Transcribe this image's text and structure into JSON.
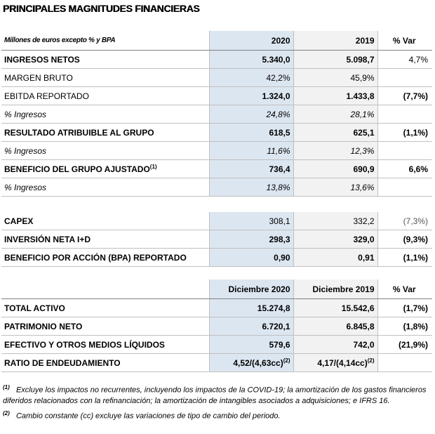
{
  "title": "PRINCIPALES MAGNITUDES FINANCIERAS",
  "tables": [
    {
      "header": [
        "Millones de euros excepto % y BPA",
        "2020",
        "2019",
        "% Var"
      ],
      "rows": [
        {
          "label": "INGRESOS NETOS",
          "cells": [
            "5.340,0",
            "5.098,7",
            "4,7%"
          ]
        },
        {
          "label": "MARGEN BRUTO",
          "cells": [
            "42,2%",
            "45,9%"
          ]
        },
        {
          "label": "EBITDA REPORTADO",
          "cells": [
            "1.324,0",
            "1.433,8",
            "(7,7%)"
          ]
        },
        {
          "label": "% Ingresos",
          "cells": [
            "24,8%",
            "28,1%"
          ]
        },
        {
          "label": "RESULTADO ATRIBUIBLE AL GRUPO",
          "cells": [
            "618,5",
            "625,1",
            "(1,1%)"
          ]
        },
        {
          "label": "% Ingresos",
          "cells": [
            "11,6%",
            "12,3%"
          ]
        },
        {
          "label": "BENEFICIO DEL GRUPO AJUSTADO",
          "note": "(1)",
          "cells": [
            "736,4",
            "690,9",
            "6,6%"
          ]
        },
        {
          "label": "% Ingresos",
          "cells": [
            "13,8%",
            "13,6%"
          ]
        }
      ]
    },
    {
      "rows": [
        {
          "label": "CAPEX",
          "cells": [
            "308,1",
            "332,2",
            "(7,3%)"
          ]
        },
        {
          "label": "INVERSIÓN NETA I+D",
          "cells": [
            "298,3",
            "329,0",
            "(9,3%)"
          ]
        },
        {
          "label": "BENEFICIO POR ACCIÓN (BPA) REPORTADO",
          "cells": [
            "0,90",
            "0,91",
            "(1,1%)"
          ]
        }
      ]
    },
    {
      "header": [
        null,
        "Diciembre 2020",
        "Diciembre 2019",
        "% Var"
      ],
      "rows": [
        {
          "label": "TOTAL ACTIVO",
          "cells": [
            "15.274,8",
            "15.542,6",
            "(1,7%)"
          ]
        },
        {
          "label": "PATRIMONIO NETO",
          "cells": [
            "6.720,1",
            "6.845,8",
            "(1,8%)"
          ]
        },
        {
          "label": "EFECTIVO Y OTROS MEDIOS LÍQUIDOS",
          "cells": [
            "579,6",
            "742,0",
            "(21,9%)"
          ]
        },
        {
          "label": "RATIO DE ENDEUDAMIENTO",
          "cells": [
            "4,52/(4,63cc)",
            "4,17/(4,14cc)"
          ],
          "cell_notes": [
            "(2)",
            "(2)"
          ]
        }
      ]
    }
  ],
  "footnotes": [
    {
      "mark": "(1)",
      "text": "Excluye los impactos no recurrentes, incluyendo los impactos de la COVID-19; la amortización de los gastos financieros diferidos relacionados con la refinanciación; la amortización de intangibles asociados a adquisiciones; e IFRS 16."
    },
    {
      "mark": "(2)",
      "text": "Cambio constante (cc) excluye las variaciones de tipo de cambio del periodo."
    }
  ]
}
